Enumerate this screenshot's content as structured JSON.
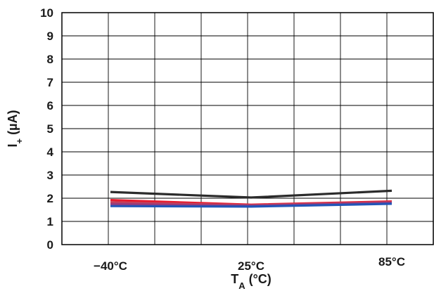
{
  "chart_data": {
    "type": "line",
    "categories": [
      "−40°C",
      "25°C",
      "85°C"
    ],
    "xlabel": {
      "main": "T",
      "sub": "A",
      "suffix": " (°C)"
    },
    "ylabel": {
      "main": "I",
      "sub": "+",
      "suffix": " (µA)"
    },
    "ylim": [
      0,
      10
    ],
    "yticks": [
      "0",
      "1",
      "2",
      "3",
      "4",
      "5",
      "6",
      "7",
      "8",
      "9",
      "10"
    ],
    "grid": true,
    "series": [
      {
        "color": "#2b2b2b",
        "values": [
          2.27,
          2.03,
          2.32
        ]
      },
      {
        "color": "#e8192c",
        "values": [
          1.92,
          1.72,
          1.86
        ]
      },
      {
        "color": "#c0405e",
        "values": [
          1.82,
          1.7,
          1.83
        ]
      },
      {
        "color": "#9a3a7a",
        "values": [
          1.75,
          1.67,
          1.8
        ]
      },
      {
        "color": "#2255b8",
        "values": [
          1.66,
          1.64,
          1.76
        ]
      }
    ]
  }
}
